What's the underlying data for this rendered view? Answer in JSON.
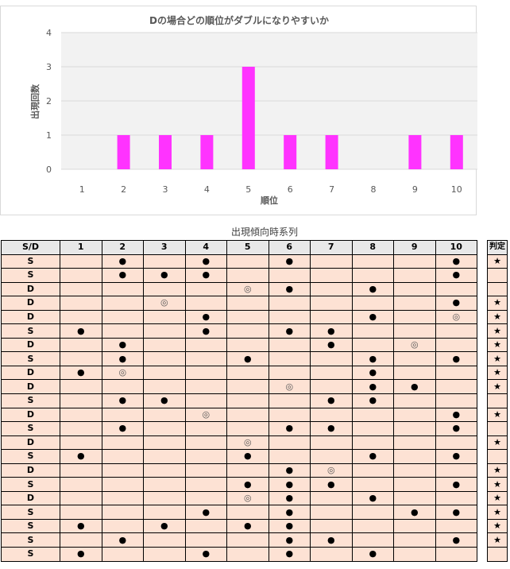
{
  "chart_data": {
    "type": "bar",
    "title": "Dの場合どの順位がダブルになりやすいか",
    "xlabel": "順位",
    "ylabel": "出現回数",
    "categories": [
      "1",
      "2",
      "3",
      "4",
      "5",
      "6",
      "7",
      "8",
      "9",
      "10"
    ],
    "values": [
      0,
      1,
      1,
      1,
      3,
      1,
      1,
      0,
      1,
      1
    ],
    "ylim": [
      0,
      4
    ],
    "yticks": [
      "0",
      "1",
      "2",
      "3",
      "4"
    ],
    "bar_color": "#ff33ff",
    "grid": true
  },
  "table": {
    "title": "出現傾向時系列",
    "header_sd": "S/D",
    "columns": [
      "1",
      "2",
      "3",
      "4",
      "5",
      "6",
      "7",
      "8",
      "9",
      "10"
    ],
    "filled_symbol": "●",
    "ring_symbol": "◎",
    "rows": [
      {
        "sd": "S",
        "cells": [
          "",
          "●",
          "",
          "●",
          "",
          "●",
          "",
          "",
          "",
          "●"
        ]
      },
      {
        "sd": "S",
        "cells": [
          "",
          "●",
          "●",
          "●",
          "",
          "",
          "",
          "",
          "",
          "●"
        ]
      },
      {
        "sd": "D",
        "cells": [
          "",
          "",
          "",
          "",
          "◎",
          "●",
          "",
          "●",
          "",
          ""
        ]
      },
      {
        "sd": "D",
        "cells": [
          "",
          "",
          "◎",
          "",
          "",
          "",
          "",
          "",
          "",
          "●"
        ]
      },
      {
        "sd": "D",
        "cells": [
          "",
          "",
          "",
          "●",
          "",
          "",
          "",
          "●",
          "",
          "◎"
        ]
      },
      {
        "sd": "S",
        "cells": [
          "●",
          "",
          "",
          "●",
          "",
          "●",
          "●",
          "",
          "",
          ""
        ]
      },
      {
        "sd": "D",
        "cells": [
          "",
          "●",
          "",
          "",
          "",
          "",
          "●",
          "",
          "◎",
          ""
        ]
      },
      {
        "sd": "S",
        "cells": [
          "",
          "●",
          "",
          "",
          "●",
          "",
          "",
          "●",
          "",
          "●"
        ]
      },
      {
        "sd": "D",
        "cells": [
          "●",
          "◎",
          "",
          "",
          "",
          "",
          "",
          "●",
          "",
          ""
        ]
      },
      {
        "sd": "D",
        "cells": [
          "",
          "",
          "",
          "",
          "",
          "◎",
          "",
          "●",
          "●",
          ""
        ]
      },
      {
        "sd": "S",
        "cells": [
          "",
          "●",
          "●",
          "",
          "",
          "",
          "●",
          "●",
          "",
          ""
        ]
      },
      {
        "sd": "D",
        "cells": [
          "",
          "",
          "",
          "◎",
          "",
          "",
          "",
          "",
          "",
          "●"
        ]
      },
      {
        "sd": "S",
        "cells": [
          "",
          "●",
          "",
          "",
          "",
          "●",
          "●",
          "",
          "",
          "●"
        ]
      },
      {
        "sd": "D",
        "cells": [
          "",
          "",
          "",
          "",
          "◎",
          "",
          "",
          "",
          "",
          ""
        ]
      },
      {
        "sd": "S",
        "cells": [
          "●",
          "",
          "",
          "",
          "●",
          "",
          "",
          "●",
          "",
          "●"
        ]
      },
      {
        "sd": "D",
        "cells": [
          "",
          "",
          "",
          "",
          "",
          "●",
          "◎",
          "",
          "",
          ""
        ]
      },
      {
        "sd": "S",
        "cells": [
          "",
          "",
          "",
          "",
          "●",
          "●",
          "●",
          "",
          "",
          "●"
        ]
      },
      {
        "sd": "D",
        "cells": [
          "",
          "",
          "",
          "",
          "◎",
          "●",
          "",
          "●",
          "",
          ""
        ]
      },
      {
        "sd": "S",
        "cells": [
          "",
          "",
          "",
          "●",
          "",
          "●",
          "",
          "",
          "●",
          "●"
        ]
      },
      {
        "sd": "S",
        "cells": [
          "●",
          "",
          "●",
          "",
          "●",
          "●",
          "",
          "",
          "",
          ""
        ]
      },
      {
        "sd": "S",
        "cells": [
          "",
          "●",
          "",
          "",
          "",
          "●",
          "●",
          "",
          "",
          "●"
        ]
      },
      {
        "sd": "S",
        "cells": [
          "●",
          "",
          "",
          "●",
          "",
          "●",
          "",
          "●",
          "",
          ""
        ]
      }
    ]
  },
  "judge": {
    "header": "判定",
    "symbol": "★",
    "values": [
      "★",
      "",
      "",
      "★",
      "★",
      "★",
      "★",
      "★",
      "★",
      "★",
      "",
      "★",
      "",
      "★",
      "",
      "★",
      "★",
      "★",
      "★",
      "★",
      "★",
      ""
    ]
  }
}
